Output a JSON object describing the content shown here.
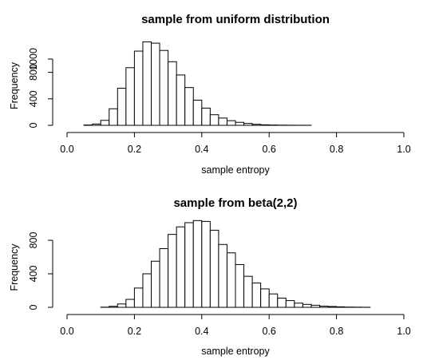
{
  "chart_data": [
    {
      "type": "bar",
      "title": "sample from uniform distribution",
      "xlabel": "sample entropy",
      "ylabel": "Frequency",
      "xlim": [
        0,
        1
      ],
      "ylim": [
        0,
        1000
      ],
      "xticks": [
        "0.0",
        "0.2",
        "0.4",
        "0.6",
        "0.8",
        "1.0"
      ],
      "xtick_values": [
        0,
        0.2,
        0.4,
        0.6,
        0.8,
        1.0
      ],
      "yticks": [
        "0",
        "400",
        "800",
        "1000"
      ],
      "ytick_values": [
        0,
        400,
        800,
        1000
      ],
      "bin_start": 0.0,
      "bin_width": 0.025,
      "values": [
        0,
        0,
        5,
        20,
        75,
        250,
        560,
        870,
        1120,
        1260,
        1240,
        1130,
        960,
        760,
        570,
        380,
        260,
        160,
        110,
        70,
        45,
        28,
        15,
        8,
        5,
        3,
        2,
        1,
        1,
        0,
        0,
        0,
        0,
        0,
        0,
        0,
        0,
        0,
        0,
        0
      ]
    },
    {
      "type": "bar",
      "title": "sample from beta(2,2)",
      "xlabel": "sample entropy",
      "ylabel": "Frequency",
      "xlim": [
        0,
        1
      ],
      "ylim": [
        0,
        1000
      ],
      "xticks": [
        "0.0",
        "0.2",
        "0.4",
        "0.6",
        "0.8",
        "1.0"
      ],
      "xtick_values": [
        0,
        0.2,
        0.4,
        0.6,
        0.8,
        1.0
      ],
      "yticks": [
        "0",
        "400",
        "800"
      ],
      "ytick_values": [
        0,
        400,
        800
      ],
      "bin_start": 0.0,
      "bin_width": 0.025,
      "values": [
        0,
        0,
        0,
        0,
        2,
        12,
        40,
        95,
        230,
        400,
        550,
        700,
        870,
        960,
        1010,
        1035,
        1025,
        920,
        750,
        650,
        510,
        370,
        290,
        220,
        160,
        110,
        80,
        50,
        35,
        25,
        14,
        10,
        6,
        3,
        2,
        1,
        0,
        0,
        0,
        0
      ]
    }
  ]
}
